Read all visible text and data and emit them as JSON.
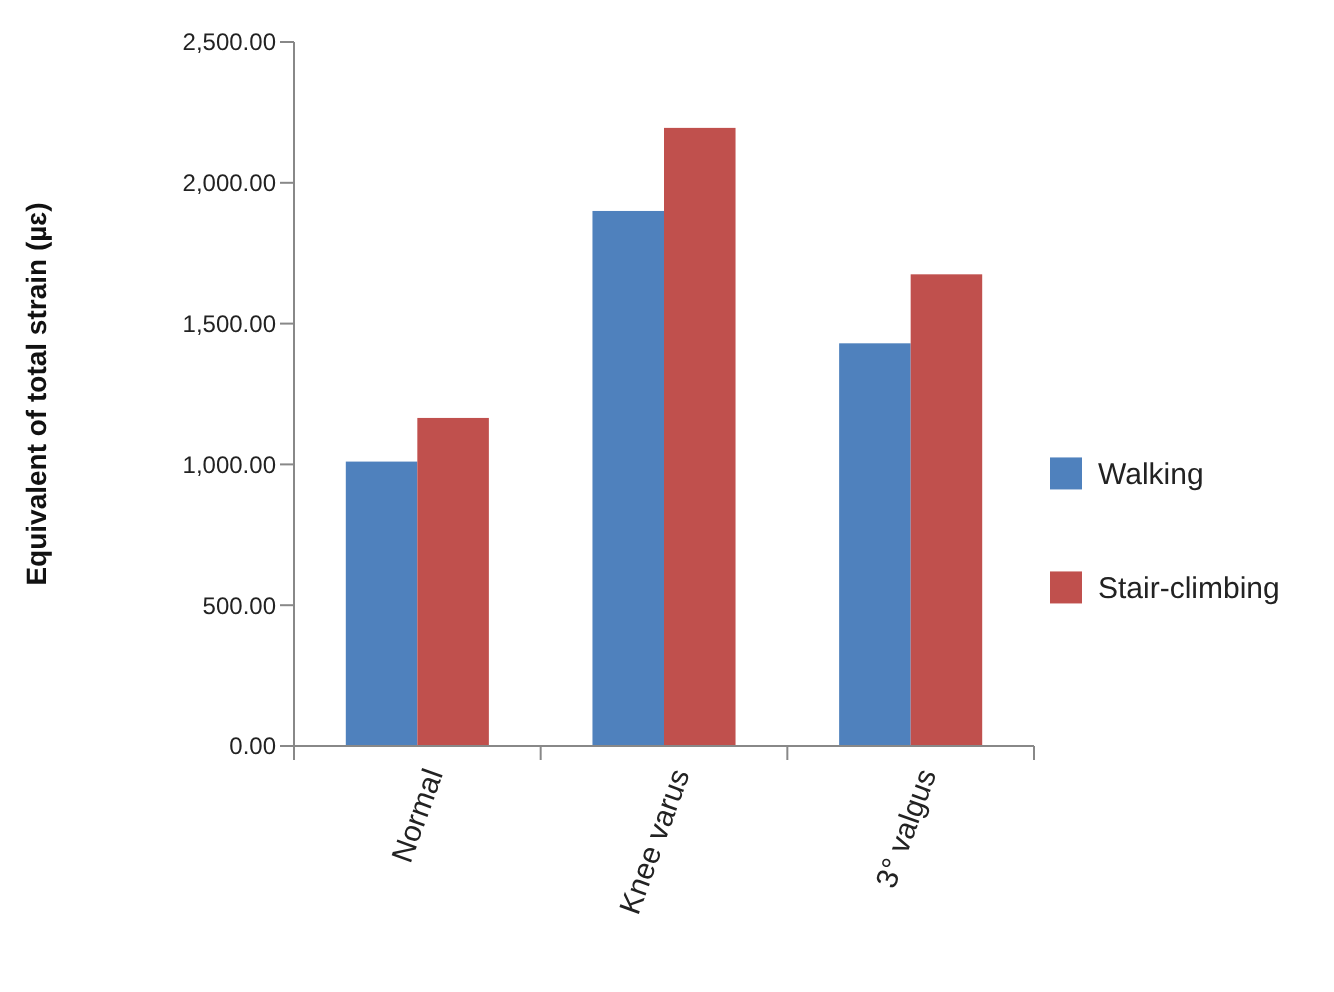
{
  "chart_data": {
    "type": "bar",
    "ylabel": "Equivalent of total strain (µɛ)",
    "categories": [
      "Normal",
      "Knee varus",
      "3° valgus"
    ],
    "series": [
      {
        "name": "Walking",
        "color": "#4f81bd",
        "values": [
          1010,
          1900,
          1430
        ]
      },
      {
        "name": "Stair-climbing",
        "color": "#c0504d",
        "values": [
          1165,
          2195,
          1675
        ]
      }
    ],
    "ylim": [
      0,
      2500
    ],
    "yticks": [
      {
        "value": 0,
        "label": "0.00"
      },
      {
        "value": 500,
        "label": "500.00"
      },
      {
        "value": 1000,
        "label": "1,000.00"
      },
      {
        "value": 1500,
        "label": "1,500.00"
      },
      {
        "value": 2000,
        "label": "2,000.00"
      },
      {
        "value": 2500,
        "label": "2,500.00"
      }
    ],
    "grid": false,
    "legend": "right"
  }
}
